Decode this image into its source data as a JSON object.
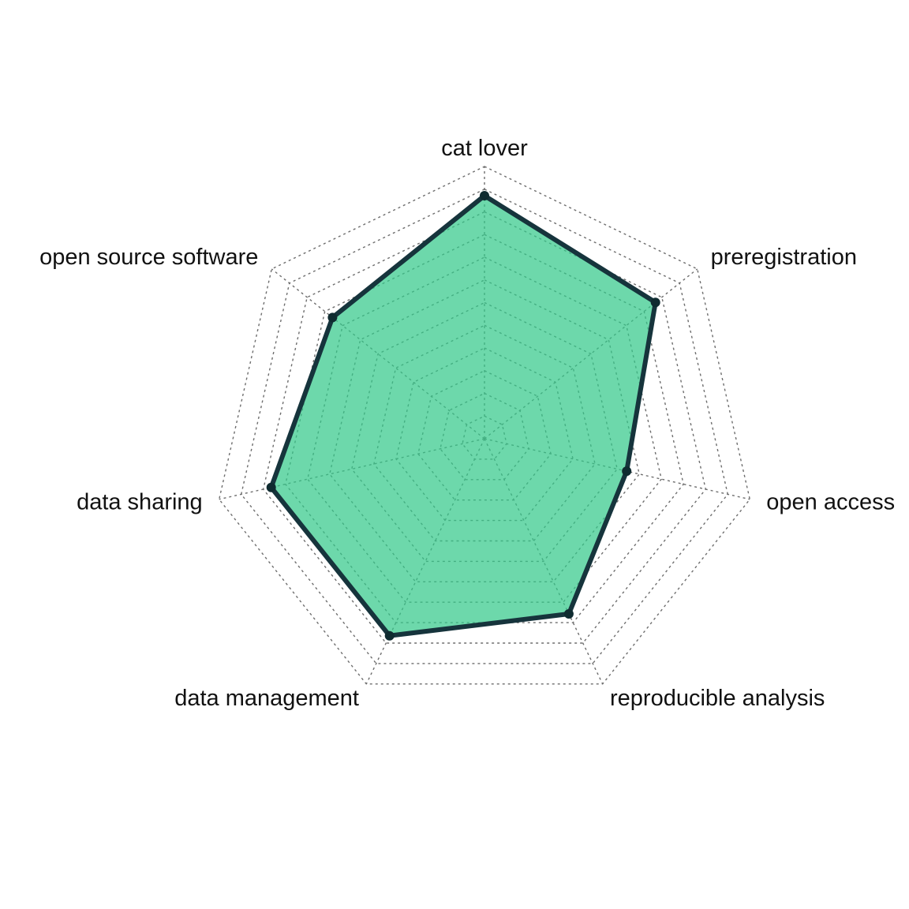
{
  "chart_data": {
    "type": "radar",
    "axes": [
      "cat lover",
      "preregistration",
      "open access",
      "reproducible analysis",
      "data management",
      "data sharing",
      "open source software"
    ],
    "series": [
      {
        "values": [
          10,
          9,
          6,
          8,
          9,
          9,
          8
        ]
      }
    ],
    "range": [
      0,
      10
    ],
    "grid_levels": 12,
    "grid": true,
    "colors": {
      "fill": "#34c98a",
      "stroke": "#16343c",
      "point": "#0f2b30",
      "grid": "#6e6e6e"
    }
  }
}
